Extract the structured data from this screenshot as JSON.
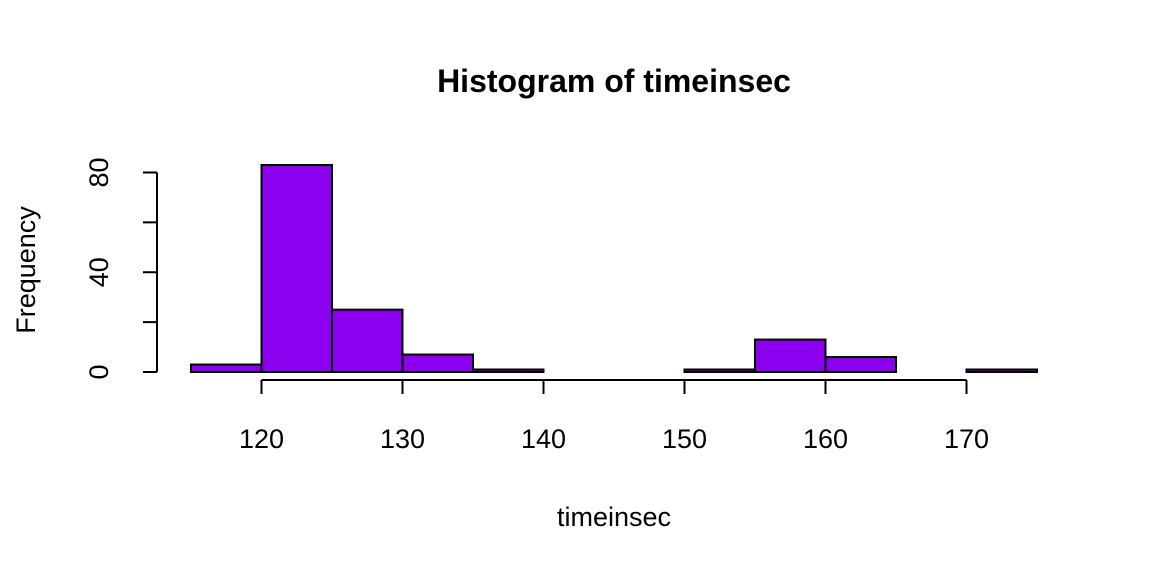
{
  "chart_data": {
    "type": "bar",
    "title": "Histogram of timeinsec",
    "xlabel": "timeinsec",
    "ylabel": "Frequency",
    "bar_color": "#8B00EE",
    "bins": [
      {
        "start": 115,
        "end": 120,
        "count": 3
      },
      {
        "start": 120,
        "end": 125,
        "count": 83
      },
      {
        "start": 125,
        "end": 130,
        "count": 25
      },
      {
        "start": 130,
        "end": 135,
        "count": 7
      },
      {
        "start": 135,
        "end": 140,
        "count": 1
      },
      {
        "start": 140,
        "end": 145,
        "count": 0
      },
      {
        "start": 145,
        "end": 150,
        "count": 0
      },
      {
        "start": 150,
        "end": 155,
        "count": 1
      },
      {
        "start": 155,
        "end": 160,
        "count": 13
      },
      {
        "start": 160,
        "end": 165,
        "count": 6
      },
      {
        "start": 165,
        "end": 170,
        "count": 0
      },
      {
        "start": 170,
        "end": 175,
        "count": 1
      }
    ],
    "xlim": [
      115,
      175
    ],
    "ylim": [
      0,
      83
    ],
    "x_ticks": [
      120,
      130,
      140,
      150,
      160,
      170
    ],
    "y_ticks": [
      0,
      20,
      40,
      60,
      80
    ],
    "y_tick_labels": [
      "0",
      "",
      "40",
      "",
      "80"
    ],
    "grid": false
  }
}
